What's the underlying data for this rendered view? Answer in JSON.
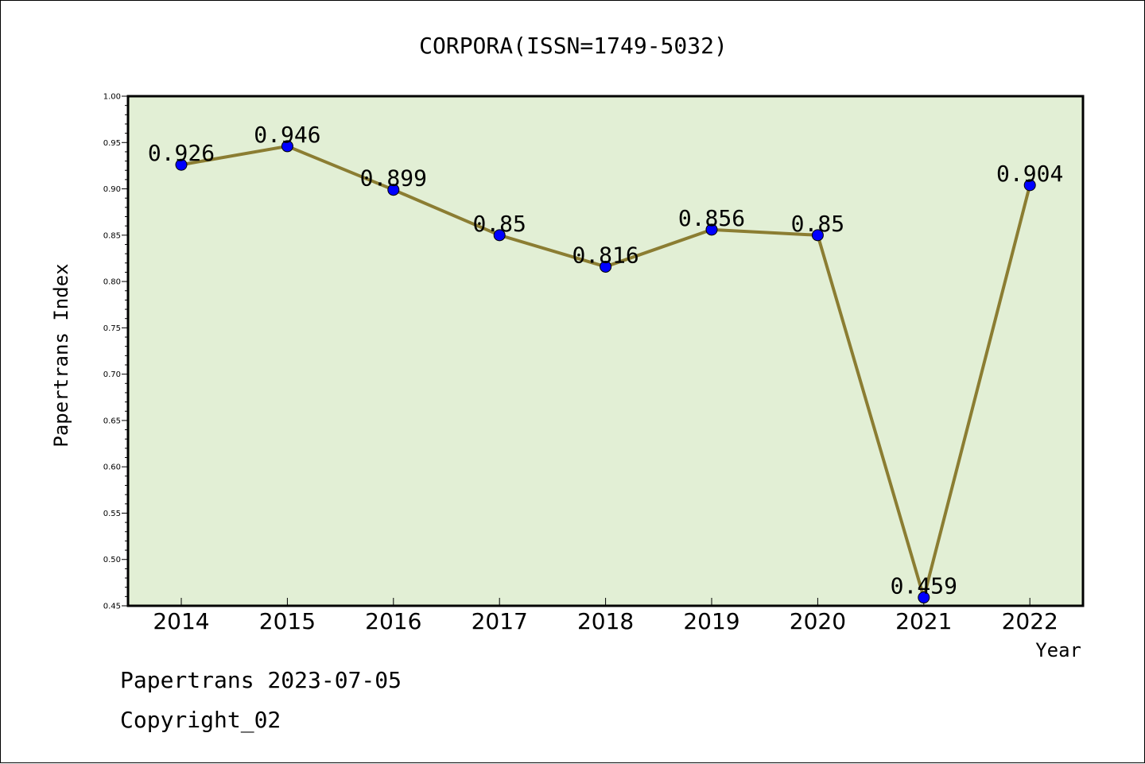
{
  "chart_data": {
    "type": "line",
    "title": "CORPORA(ISSN=1749-5032)",
    "xlabel": "Year",
    "ylabel": "Papertrans Index",
    "categories": [
      "2014",
      "2015",
      "2016",
      "2017",
      "2018",
      "2019",
      "2020",
      "2021",
      "2022"
    ],
    "series": [
      {
        "values": [
          0.926,
          0.946,
          0.899,
          0.85,
          0.816,
          0.856,
          0.85,
          0.459,
          0.904
        ],
        "line_color": "#8b7d32",
        "marker_color": "#0000ff"
      }
    ],
    "data_labels": [
      "0.926",
      "0.946",
      "0.899",
      "0.85",
      "0.816",
      "0.856",
      "0.85",
      "0.459",
      "0.904"
    ],
    "ylim": [
      0.45,
      1.0
    ],
    "yticks": [
      "0.45",
      "0.50",
      "0.55",
      "0.60",
      "0.65",
      "0.70",
      "0.75",
      "0.80",
      "0.85",
      "0.90",
      "0.95",
      "1.00"
    ],
    "plot_background": "#e2efd5",
    "grid": false,
    "legend": "none"
  },
  "footer": {
    "line1": "Papertrans 2023-07-05",
    "line2": "Copyright_02"
  }
}
